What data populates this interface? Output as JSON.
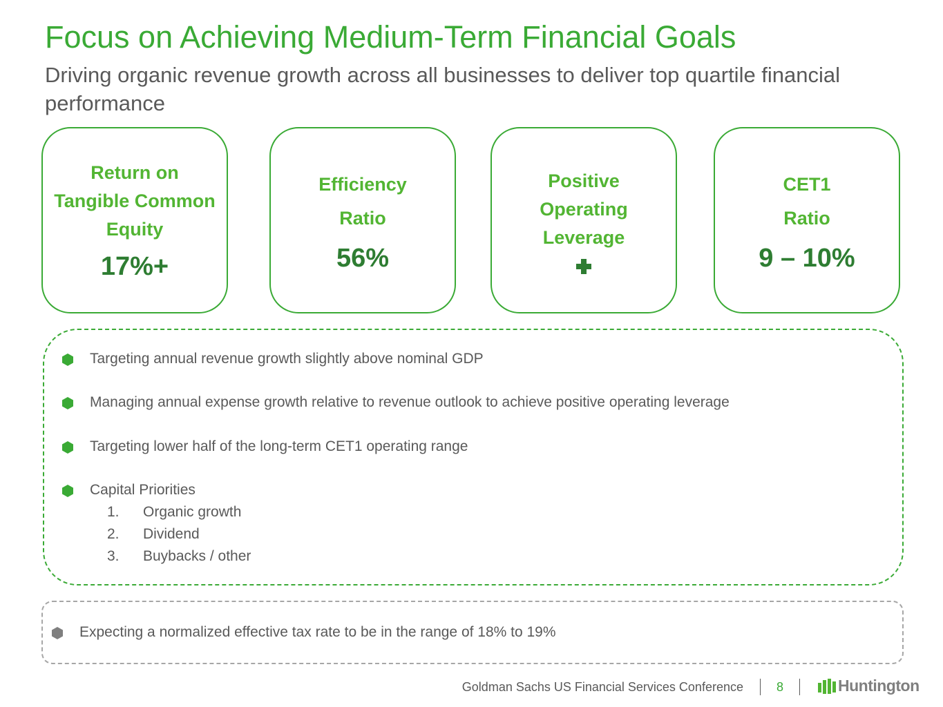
{
  "header": {
    "title": "Focus on Achieving Medium-Term Financial Goals",
    "subtitle": "Driving organic revenue growth across all businesses to deliver top quartile financial performance"
  },
  "goals": [
    {
      "label": "Return on Tangible Common Equity",
      "value": "17%+"
    },
    {
      "label": "Efficiency Ratio",
      "value": "56%"
    },
    {
      "label": "Positive Operating Leverage"
    },
    {
      "label": "CET1 Ratio",
      "value": "9 – 10%"
    }
  ],
  "bullets": [
    {
      "text": "Targeting annual revenue growth slightly above nominal GDP"
    },
    {
      "text": "Managing annual expense growth relative to revenue outlook to achieve positive operating leverage"
    },
    {
      "text": "Targeting lower half of the long-term CET1 operating range"
    },
    {
      "text": "Capital Priorities",
      "items": [
        {
          "number": "1.",
          "text": "Organic growth"
        },
        {
          "number": "2.",
          "text": "Dividend"
        },
        {
          "number": "3.",
          "text": "Buybacks / other"
        }
      ]
    }
  ],
  "note": "Expecting a normalized effective tax rate to be in the range of 18% to 19%",
  "footer": {
    "event": "Goldman Sachs US Financial Services Conference",
    "page": "8",
    "logo": "Huntington"
  }
}
